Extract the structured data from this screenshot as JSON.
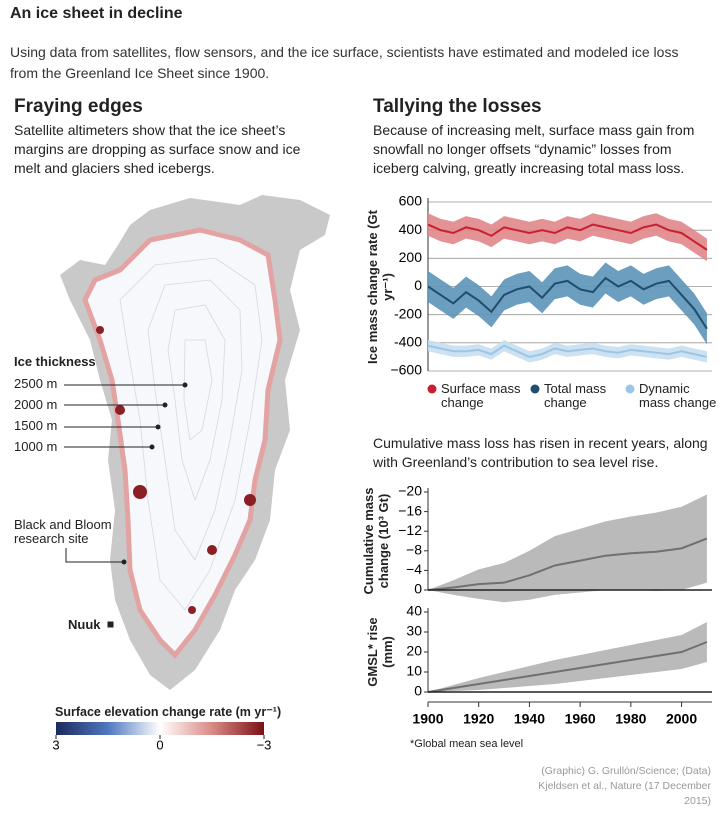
{
  "title": "An ice sheet in decline",
  "intro": "Using data from satellites, flow sensors, and the ice surface, scientists have estimated and modeled ice loss from the Greenland Ice Sheet since 1900.",
  "map": {
    "title": "Fraying edges",
    "description": "Satellite altimeters show that the ice sheet’s margins are dropping as surface snow and ice melt and glaciers shed icebergs.",
    "thickness_title": "Ice thickness",
    "thickness_labels": [
      "2500 m",
      "2000 m",
      "1500 m",
      "1000 m"
    ],
    "site_label": "Black and Bloom research site",
    "city_label": "Nuuk",
    "colorbar": {
      "title": "Surface elevation change rate (m yr⁻¹)",
      "clim": [
        3,
        -3
      ],
      "colors": [
        "#1c2a5e",
        "#4f78c0",
        "#ffffff",
        "#d98a86",
        "#7a1016"
      ],
      "ticks": [
        3,
        0,
        {
          "value": -3,
          "label": "−3"
        }
      ]
    }
  },
  "right": {
    "title": "Tallying the losses",
    "description": "Because of increasing melt, surface mass gain from snowfall no longer offsets “dynamic” losses from iceberg calving, greatly increasing total mass loss.",
    "note": "Cumulative mass loss has risen in recent years, along with Greenland’s contribution to sea level rise."
  },
  "chart_data": [
    {
      "type": "line",
      "y_label": "Ice mass change rate (Gt yr⁻¹)",
      "xlim": [
        1900,
        2012
      ],
      "ylim": [
        -600,
        600
      ],
      "yticks": [
        600,
        400,
        200,
        0,
        -200,
        -400,
        {
          "value": -600,
          "label": "−600"
        }
      ],
      "grid": true,
      "x": [
        1900,
        1905,
        1910,
        1915,
        1920,
        1925,
        1930,
        1935,
        1940,
        1945,
        1950,
        1955,
        1960,
        1965,
        1970,
        1975,
        1980,
        1985,
        1990,
        1995,
        2000,
        2005,
        2010
      ],
      "series": [
        {
          "name": "Surface mass change",
          "color": "#c8202f",
          "band_color": "#e0868a",
          "error": 80,
          "values": [
            440,
            400,
            380,
            420,
            400,
            360,
            420,
            400,
            380,
            400,
            380,
            420,
            400,
            440,
            420,
            400,
            380,
            420,
            440,
            400,
            380,
            320,
            260
          ]
        },
        {
          "name": "Total mass change",
          "color": "#1f4e6e",
          "band_color": "#5b94b8",
          "error": 110,
          "values": [
            0,
            -60,
            -120,
            -40,
            -100,
            -180,
            -60,
            -20,
            0,
            -80,
            20,
            40,
            -20,
            -40,
            60,
            0,
            40,
            -20,
            20,
            40,
            -60,
            -160,
            -300
          ]
        },
        {
          "name": "Dynamic mass change",
          "color": "#9cc6e4",
          "band_color": "#c6def0",
          "error": 40,
          "values": [
            -420,
            -440,
            -460,
            -460,
            -450,
            -480,
            -420,
            -460,
            -500,
            -480,
            -440,
            -460,
            -450,
            -440,
            -460,
            -470,
            -450,
            -460,
            -470,
            -480,
            -460,
            -480,
            -500
          ]
        }
      ]
    },
    {
      "type": "line",
      "y_label": "Cumulative mass change (10³ Gt)",
      "xlim": [
        1900,
        2012
      ],
      "ylim": [
        0,
        -20
      ],
      "yticks": [
        {
          "value": -20,
          "label": "−20"
        },
        {
          "value": -16,
          "label": "−16"
        },
        {
          "value": -12,
          "label": "−12"
        },
        {
          "value": -8,
          "label": "−8"
        },
        {
          "value": -4,
          "label": "−4"
        },
        0
      ],
      "grid": false,
      "x": [
        1900,
        1910,
        1920,
        1930,
        1940,
        1950,
        1960,
        1970,
        1980,
        1990,
        2000,
        2010
      ],
      "series": [
        {
          "color": "#707070",
          "band_color": "#b3b3b3",
          "values": [
            0,
            -0.5,
            -1.2,
            -1.5,
            -3,
            -5,
            -6,
            -7,
            -7.5,
            -7.8,
            -8.5,
            -10.5
          ],
          "errors": [
            0,
            1.5,
            3,
            4,
            5,
            6,
            6.5,
            7,
            7.5,
            8,
            8.5,
            9
          ]
        }
      ]
    },
    {
      "type": "line",
      "y_label": "GMSL* rise (mm)",
      "xlim": [
        1900,
        2012
      ],
      "ylim": [
        0,
        40
      ],
      "yticks": [
        0,
        10,
        20,
        30,
        40
      ],
      "xticks": [
        1900,
        1920,
        1940,
        1960,
        1980,
        2000
      ],
      "grid": false,
      "x": [
        1900,
        1910,
        1920,
        1930,
        1940,
        1950,
        1960,
        1970,
        1980,
        1990,
        2000,
        2010
      ],
      "series": [
        {
          "color": "#707070",
          "band_color": "#b3b3b3",
          "values": [
            0,
            2,
            4,
            6,
            8,
            10,
            12,
            14,
            16,
            18,
            20,
            25
          ],
          "errors": [
            0,
            1.5,
            3,
            4,
            5,
            6,
            6.5,
            7,
            7.5,
            8,
            8.5,
            10
          ]
        }
      ]
    }
  ],
  "footnote": "*Global mean sea level",
  "credit": "(Graphic) G. Grullón/Science; (Data) Kjeldsen et al., Nature (17 December 2015)"
}
